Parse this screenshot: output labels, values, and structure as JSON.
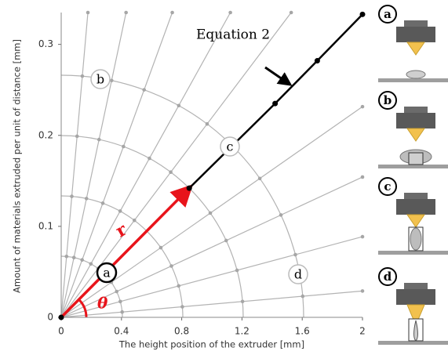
{
  "chart_data": {
    "type": "line",
    "xlabel": "The height position of the extruder [mm]",
    "ylabel": "Amount of materials extruded per unit of distance  [mm]",
    "xlim": [
      0,
      2
    ],
    "ylim": [
      0,
      0.335
    ],
    "xticks": [
      0,
      0.4,
      0.8,
      1.2,
      1.6,
      2
    ],
    "yticks": [
      0,
      0.1,
      0.2,
      0.3
    ],
    "series": [
      {
        "name": "Equation 2",
        "color": "#000000",
        "x": [
          0.85,
          1.42,
          1.7,
          2
        ],
        "values": [
          0.142,
          0.235,
          0.282,
          0.333
        ]
      }
    ],
    "vector": {
      "label": "r",
      "x": 0.85,
      "value": 0.142,
      "color": "#e8141b"
    },
    "angle_label": "θ",
    "region_labels": [
      "a",
      "b",
      "c",
      "d"
    ]
  },
  "panels": [
    {
      "label": "a"
    },
    {
      "label": "b"
    },
    {
      "label": "c"
    },
    {
      "label": "d"
    }
  ]
}
